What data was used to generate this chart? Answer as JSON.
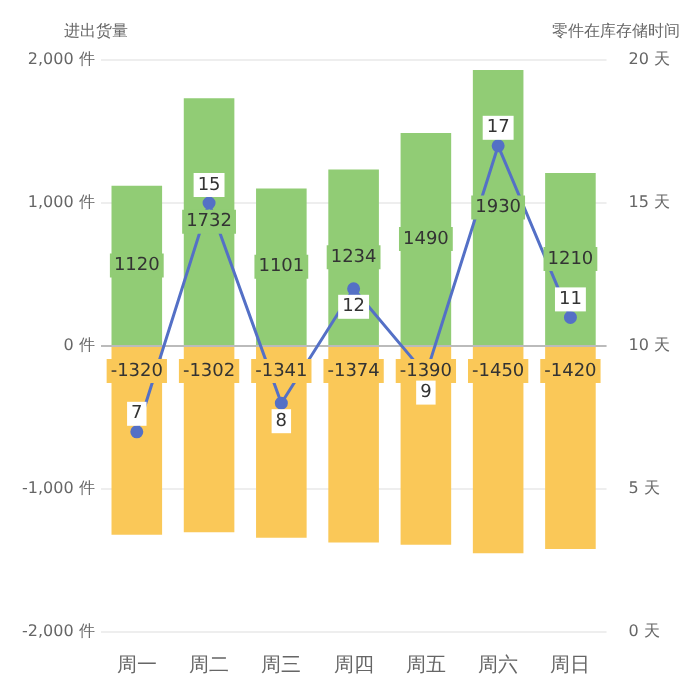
{
  "chart_data": {
    "type": "bar",
    "stacked": true,
    "ylabel": "进出货量",
    "y2label": "零件在库存储时间",
    "categories": [
      "周一",
      "周二",
      "周三",
      "周四",
      "周五",
      "周六",
      "周日"
    ],
    "series": [
      {
        "color": "#91cc75",
        "values": [
          1120,
          1732,
          1101,
          1234,
          1490,
          1930,
          1210
        ]
      },
      {
        "color": "#fac858",
        "values": [
          -1320,
          -1302,
          -1341,
          -1374,
          -1390,
          -1450,
          -1420
        ]
      },
      {
        "type": "line",
        "axis": "y2",
        "color": "#5470c6",
        "values": [
          7,
          15,
          8,
          12,
          9,
          17,
          11
        ]
      }
    ],
    "ylim": [
      -2000,
      2000
    ],
    "yticks": [
      {
        "value": -2000,
        "label": "-2,000 件"
      },
      {
        "value": -1000,
        "label": "-1,000 件"
      },
      {
        "value": 0,
        "label": "0 件"
      },
      {
        "value": 1000,
        "label": "1,000 件"
      },
      {
        "value": 2000,
        "label": "2,000 件"
      }
    ],
    "y2lim": [
      0,
      20
    ],
    "y2ticks": [
      {
        "value": 0,
        "label": "0 天"
      },
      {
        "value": 5,
        "label": "5 天"
      },
      {
        "value": 10,
        "label": "10 天"
      },
      {
        "value": 15,
        "label": "15 天"
      },
      {
        "value": 20,
        "label": "20 天"
      }
    ],
    "grid": "y",
    "legend": false,
    "data_labels": true,
    "marker": "circle",
    "line_style": "solid"
  }
}
